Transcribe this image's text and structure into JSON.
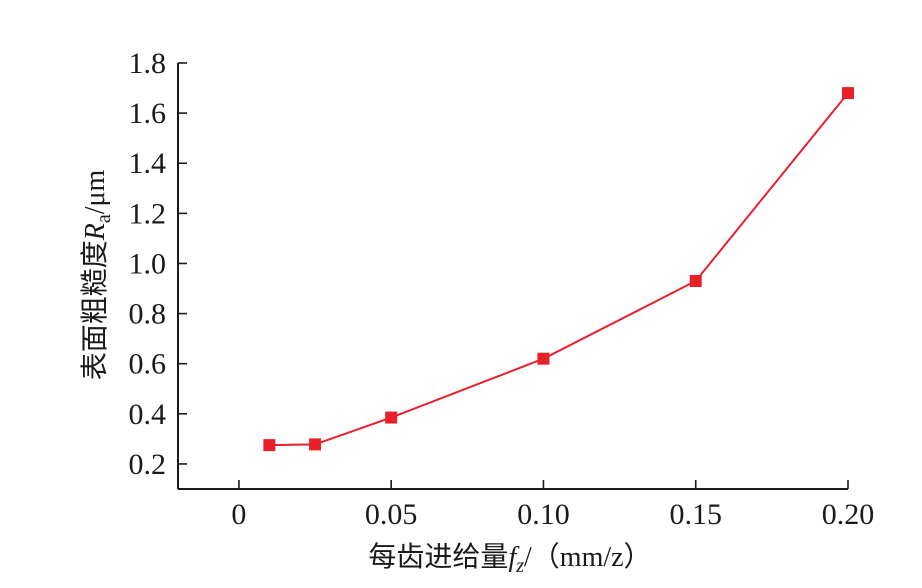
{
  "chart_data": {
    "type": "line",
    "x": [
      0.01,
      0.025,
      0.05,
      0.1,
      0.15,
      0.2
    ],
    "series": [
      {
        "values": [
          0.275,
          0.278,
          0.385,
          0.62,
          0.93,
          1.68
        ],
        "color": "#e8202a",
        "marker": "square"
      }
    ],
    "xlabel": {
      "prefix": "每齿进给量",
      "var": "f",
      "sub": "z",
      "suffix": "/（mm/z）"
    },
    "ylabel": {
      "prefix": "表面粗糙度",
      "var": "R",
      "sub": "a",
      "suffix": "/μm"
    },
    "xlim": [
      -0.02,
      0.2
    ],
    "ylim": [
      0.1,
      1.8
    ],
    "xticks": [
      0,
      0.05,
      0.1,
      0.15,
      0.2
    ],
    "xtick_labels": [
      "0",
      "0.05",
      "0.10",
      "0.15",
      "0.20"
    ],
    "yticks": [
      0.2,
      0.4,
      0.6,
      0.8,
      1.0,
      1.2,
      1.4,
      1.6,
      1.8
    ],
    "ytick_labels": [
      "0.2",
      "0.4",
      "0.6",
      "0.8",
      "1.0",
      "1.2",
      "1.4",
      "1.6",
      "1.8"
    ],
    "grid": false,
    "axis_color": "#1a1a1a"
  }
}
